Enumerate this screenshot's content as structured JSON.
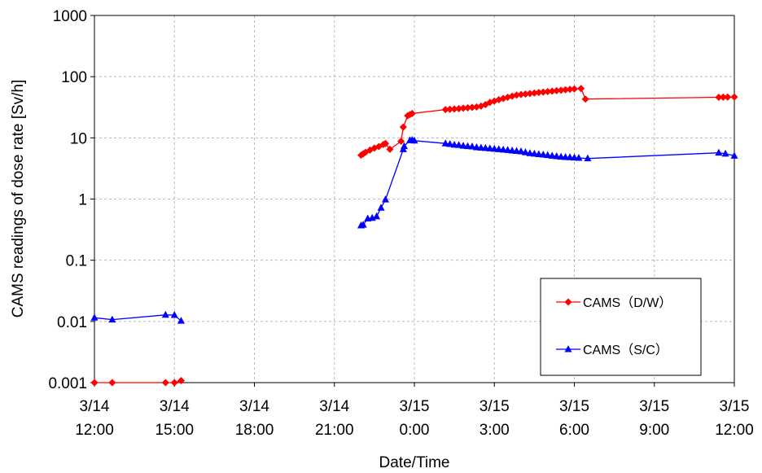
{
  "chart_data": {
    "type": "line",
    "xlabel": "Date/Time",
    "ylabel": "CAMS readings of dose rate  [Sv/h]",
    "yscale": "log",
    "ylim": [
      0.001,
      1000
    ],
    "xlim": [
      "3/14 12:00",
      "3/15 12:00"
    ],
    "grid": true,
    "legend_position": "bottom-right",
    "x_ticks": [
      {
        "line1": "3/14",
        "line2": "12:00"
      },
      {
        "line1": "3/14",
        "line2": "15:00"
      },
      {
        "line1": "3/14",
        "line2": "18:00"
      },
      {
        "line1": "3/14",
        "line2": "21:00"
      },
      {
        "line1": "3/15",
        "line2": "0:00"
      },
      {
        "line1": "3/15",
        "line2": "3:00"
      },
      {
        "line1": "3/15",
        "line2": "6:00"
      },
      {
        "line1": "3/15",
        "line2": "9:00"
      },
      {
        "line1": "3/15",
        "line2": "12:00"
      }
    ],
    "y_ticks": [
      "0.001",
      "0.01",
      "0.1",
      "1",
      "10",
      "100",
      "1000"
    ],
    "series": [
      {
        "name": "CAMS（D/W）",
        "color": "#ff0000",
        "marker": "diamond",
        "segments": [
          [
            [
              "3/14 12:00",
              0.001
            ],
            [
              "3/14 12:40",
              0.001
            ],
            [
              "3/14 14:40",
              0.001
            ],
            [
              "3/14 15:00",
              0.001
            ],
            [
              "3/14 15:15",
              0.00108
            ]
          ],
          [
            [
              "3/14 22:00",
              5.2
            ],
            [
              "3/14 22:05",
              5.5
            ],
            [
              "3/14 22:10",
              5.8
            ],
            [
              "3/14 22:20",
              6.3
            ],
            [
              "3/14 22:30",
              6.8
            ],
            [
              "3/14 22:40",
              7.2
            ],
            [
              "3/14 22:50",
              7.8
            ],
            [
              "3/14 22:55",
              8.1
            ],
            [
              "3/14 23:05",
              6.5
            ],
            [
              "3/14 23:30",
              8.8
            ],
            [
              "3/14 23:35",
              15
            ],
            [
              "3/14 23:45",
              23
            ],
            [
              "3/14 23:50",
              24
            ],
            [
              "3/14 23:55",
              25
            ],
            [
              "3/15 1:10",
              29
            ],
            [
              "3/15 1:20",
              29.3
            ],
            [
              "3/15 1:30",
              29.6
            ],
            [
              "3/15 1:40",
              30
            ],
            [
              "3/15 1:50",
              30.5
            ],
            [
              "3/15 2:00",
              31
            ],
            [
              "3/15 2:10",
              31.5
            ],
            [
              "3/15 2:20",
              32
            ],
            [
              "3/15 2:30",
              33
            ],
            [
              "3/15 2:40",
              35
            ],
            [
              "3/15 2:50",
              38
            ],
            [
              "3/15 3:00",
              40
            ],
            [
              "3/15 3:10",
              42
            ],
            [
              "3/15 3:20",
              44
            ],
            [
              "3/15 3:30",
              46
            ],
            [
              "3/15 3:40",
              48
            ],
            [
              "3/15 3:50",
              50
            ],
            [
              "3/15 4:00",
              51
            ],
            [
              "3/15 4:10",
              52
            ],
            [
              "3/15 4:20",
              53
            ],
            [
              "3/15 4:30",
              54
            ],
            [
              "3/15 4:40",
              55
            ],
            [
              "3/15 4:50",
              56
            ],
            [
              "3/15 5:00",
              57
            ],
            [
              "3/15 5:10",
              58
            ],
            [
              "3/15 5:20",
              59
            ],
            [
              "3/15 5:30",
              60
            ],
            [
              "3/15 5:40",
              61
            ],
            [
              "3/15 5:50",
              62
            ],
            [
              "3/15 6:00",
              63
            ],
            [
              "3/15 6:15",
              64
            ],
            [
              "3/15 6:25",
              43
            ],
            [
              "3/15 11:25",
              46
            ],
            [
              "3/15 11:35",
              46.2
            ],
            [
              "3/15 11:45",
              46.4
            ],
            [
              "3/15 12:00",
              46.5
            ]
          ]
        ]
      },
      {
        "name": "CAMS（S/C）",
        "color": "#0000ff",
        "marker": "triangle",
        "segments": [
          [
            [
              "3/14 12:00",
              0.0115
            ],
            [
              "3/14 12:40",
              0.0107
            ],
            [
              "3/14 14:40",
              0.0128
            ],
            [
              "3/14 15:00",
              0.0127
            ],
            [
              "3/14 15:15",
              0.0102
            ]
          ],
          [
            [
              "3/14 22:00",
              0.37
            ],
            [
              "3/14 22:05",
              0.38
            ],
            [
              "3/14 22:15",
              0.48
            ],
            [
              "3/14 22:25",
              0.49
            ],
            [
              "3/14 22:35",
              0.52
            ],
            [
              "3/14 22:45",
              0.72
            ],
            [
              "3/14 22:55",
              0.98
            ],
            [
              "3/14 23:35",
              6.5
            ],
            [
              "3/14 23:37",
              7.3
            ],
            [
              "3/14 23:50",
              9.1
            ],
            [
              "3/14 23:55",
              9.2
            ],
            [
              "3/15 0:00",
              9.0
            ],
            [
              "3/15 1:10",
              8.1
            ],
            [
              "3/15 1:20",
              7.9
            ],
            [
              "3/15 1:30",
              7.7
            ],
            [
              "3/15 1:40",
              7.6
            ],
            [
              "3/15 1:50",
              7.4
            ],
            [
              "3/15 2:00",
              7.3
            ],
            [
              "3/15 2:10",
              7.2
            ],
            [
              "3/15 2:20",
              7.0
            ],
            [
              "3/15 2:30",
              6.9
            ],
            [
              "3/15 2:40",
              6.8
            ],
            [
              "3/15 2:50",
              6.7
            ],
            [
              "3/15 3:00",
              6.6
            ],
            [
              "3/15 3:10",
              6.5
            ],
            [
              "3/15 3:20",
              6.4
            ],
            [
              "3/15 3:30",
              6.3
            ],
            [
              "3/15 3:40",
              6.2
            ],
            [
              "3/15 3:50",
              6.1
            ],
            [
              "3/15 4:00",
              6.0
            ],
            [
              "3/15 4:10",
              5.8
            ],
            [
              "3/15 4:20",
              5.6
            ],
            [
              "3/15 4:30",
              5.5
            ],
            [
              "3/15 4:40",
              5.4
            ],
            [
              "3/15 4:50",
              5.3
            ],
            [
              "3/15 5:00",
              5.2
            ],
            [
              "3/15 5:10",
              5.1
            ],
            [
              "3/15 5:20",
              5.0
            ],
            [
              "3/15 5:30",
              4.9
            ],
            [
              "3/15 5:40",
              4.85
            ],
            [
              "3/15 5:50",
              4.8
            ],
            [
              "3/15 6:00",
              4.75
            ],
            [
              "3/15 6:10",
              4.7
            ],
            [
              "3/15 6:30",
              4.6
            ],
            [
              "3/15 11:25",
              5.7
            ],
            [
              "3/15 11:40",
              5.5
            ],
            [
              "3/15 12:00",
              5.1
            ]
          ]
        ]
      }
    ]
  }
}
